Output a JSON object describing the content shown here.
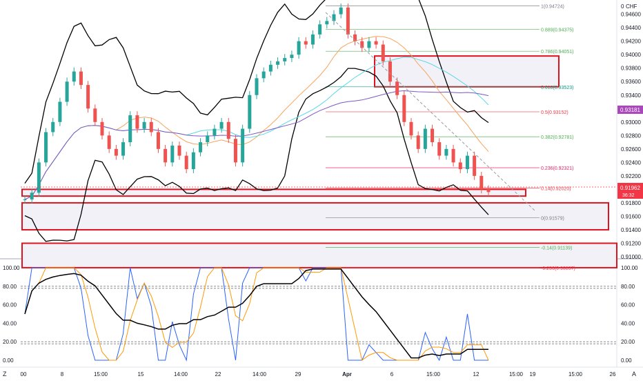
{
  "currency_label": "CHF",
  "current_price_tag": "0.91962",
  "current_price_sub": "36:32",
  "sma_price_tag": "0.93181",
  "price_axis": {
    "ylim": [
      0.91,
      0.9475
    ],
    "ticks": [
      "0.94600",
      "0.94400",
      "0.94200",
      "0.94000",
      "0.93800",
      "0.93600",
      "0.93400",
      "0.93200",
      "0.93000",
      "0.92800",
      "0.92600",
      "0.92400",
      "0.92200",
      "0.91800",
      "0.91600",
      "0.91400",
      "0.91200",
      "0.91000"
    ],
    "top_tick": "0"
  },
  "stoch_axis": {
    "ticks": [
      "100.00",
      "80.00",
      "60.00",
      "40.00",
      "20.00",
      "0.00"
    ],
    "left_ticks": [
      "100.00",
      "80.00",
      "60.00",
      "40.00",
      "20.00",
      "0.00"
    ]
  },
  "time_axis": {
    "labels": [
      "00",
      "8",
      "15:00",
      "15",
      "14:00",
      "22",
      "14:00",
      "29",
      "Apr",
      "6",
      "15:00",
      "12",
      "15:00",
      "19",
      "15:00",
      "26"
    ],
    "bold_label": "Apr"
  },
  "bottom_controls": {
    "left": "Z",
    "right": "A"
  },
  "fib_levels": [
    {
      "label": "1(0.94724)",
      "value": 0.94724,
      "color": "#787b86"
    },
    {
      "label": "0.889(0.94375)",
      "value": 0.94375,
      "color": "#4caf50"
    },
    {
      "label": "0.786(0.94051)",
      "value": 0.94051,
      "color": "#4caf50"
    },
    {
      "label": "0.618(0.93523)",
      "value": 0.93523,
      "color": "#089981"
    },
    {
      "label": "0.5(0.93152)",
      "value": 0.93152,
      "color": "#f23645"
    },
    {
      "label": "0.382(0.92781)",
      "value": 0.92781,
      "color": "#4caf50"
    },
    {
      "label": "0.236(0.92321)",
      "value": 0.92321,
      "color": "#e91e63"
    },
    {
      "label": "0.14(0.92020)",
      "value": 0.9202,
      "color": "#f23645"
    },
    {
      "label": "0(0.91579)",
      "value": 0.91579,
      "color": "#787b86"
    },
    {
      "label": "-0.14(0.91139)",
      "value": 0.91139,
      "color": "#4caf50"
    },
    {
      "label": "-0.236(0.90837)",
      "value": 0.90837,
      "color": "#f23645"
    }
  ],
  "chart_data": {
    "type": "line",
    "symbol_quote": "CHF",
    "price_range": [
      0.91,
      0.9475
    ],
    "last_price": 0.91962,
    "sma_value": 0.93181,
    "close_series": [
      0.9185,
      0.9195,
      0.924,
      0.9285,
      0.93,
      0.933,
      0.936,
      0.9375,
      0.9355,
      0.932,
      0.93,
      0.928,
      0.926,
      0.925,
      0.927,
      0.931,
      0.929,
      0.93,
      0.9285,
      0.926,
      0.924,
      0.9265,
      0.925,
      0.923,
      0.9255,
      0.927,
      0.928,
      0.929,
      0.93,
      0.9275,
      0.924,
      0.929,
      0.934,
      0.9365,
      0.9375,
      0.9385,
      0.939,
      0.9395,
      0.94,
      0.942,
      0.9415,
      0.943,
      0.9445,
      0.945,
      0.946,
      0.947,
      0.943,
      0.942,
      0.941,
      0.942,
      0.9415,
      0.939,
      0.936,
      0.934,
      0.93,
      0.928,
      0.926,
      0.929,
      0.927,
      0.925,
      0.926,
      0.924,
      0.923,
      0.925,
      0.922,
      0.92,
      0.9196
    ],
    "zones": [
      {
        "type": "resistance",
        "from": 0.93523,
        "to": 0.9398
      },
      {
        "type": "support",
        "from": 0.919,
        "to": 0.92
      },
      {
        "type": "support",
        "from": 0.914,
        "to": 0.918
      },
      {
        "type": "support",
        "from": 0.90837,
        "to": 0.912
      }
    ],
    "stochastic": {
      "range": [
        0,
        100
      ],
      "levels": [
        80,
        20
      ]
    }
  }
}
